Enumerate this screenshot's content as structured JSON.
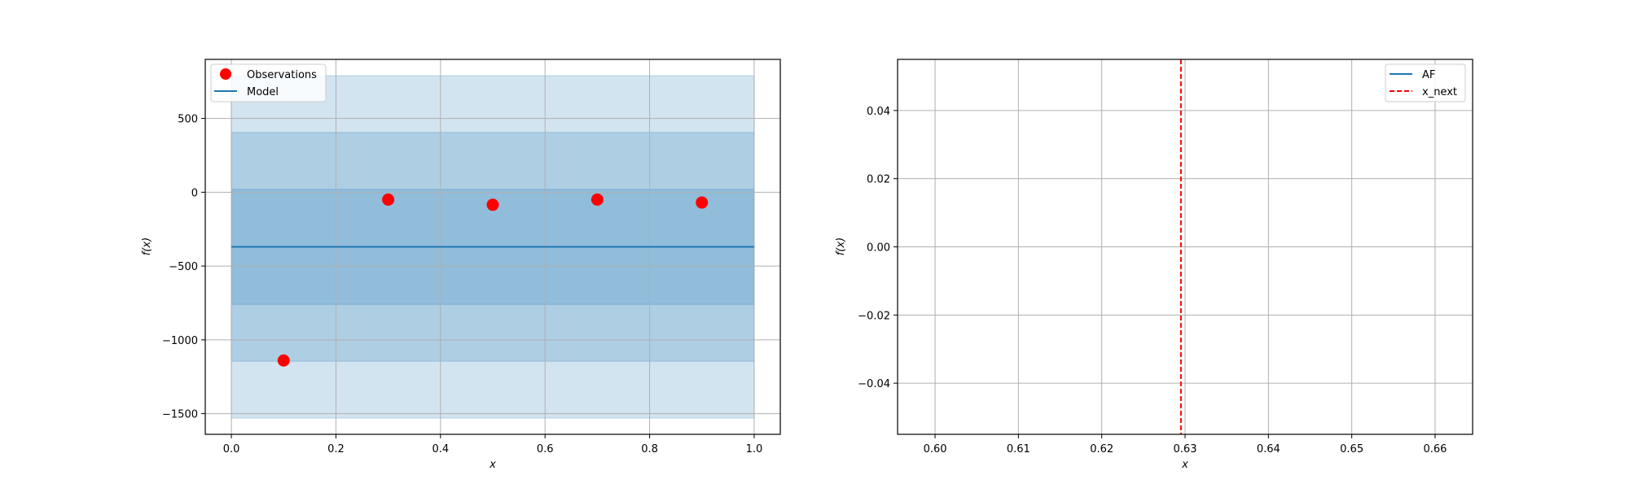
{
  "chart_data": [
    {
      "type": "line",
      "xlabel": "x",
      "ylabel": "f(x)",
      "xlim": [
        -0.05,
        1.05
      ],
      "ylim": [
        -1640,
        900
      ],
      "grid": true,
      "legend_position": "top-left",
      "xticks": [
        0.0,
        0.2,
        0.4,
        0.6,
        0.8,
        1.0
      ],
      "xtick_labels": [
        "0.0",
        "0.2",
        "0.4",
        "0.6",
        "0.8",
        "1.0"
      ],
      "yticks": [
        500,
        0,
        -500,
        -1000,
        -1500
      ],
      "ytick_labels": [
        "500",
        "0",
        "−500",
        "−1000",
        "−1500"
      ],
      "legend": [
        "Observations",
        "Model"
      ],
      "colors": {
        "observations": "#ff0000",
        "model": "#1f77b4"
      },
      "observations": {
        "name": "Observations",
        "x": [
          0.1,
          0.3,
          0.5,
          0.7,
          0.9
        ],
        "y": [
          -1140,
          -50,
          -85,
          -50,
          -70
        ]
      },
      "model": {
        "name": "Model",
        "x": [
          0.0,
          1.0
        ],
        "y": [
          -370,
          -370
        ]
      },
      "confidence_bands": [
        {
          "lower": -1530,
          "upper": 790
        },
        {
          "lower": -1145,
          "upper": 405
        },
        {
          "lower": -760,
          "upper": 20
        }
      ]
    },
    {
      "type": "line",
      "xlabel": "x",
      "ylabel": "f(x)",
      "xlim": [
        0.5955,
        0.6645
      ],
      "ylim": [
        -0.055,
        0.055
      ],
      "grid": true,
      "legend_position": "top-right",
      "xticks": [
        0.6,
        0.61,
        0.62,
        0.63,
        0.64,
        0.65,
        0.66
      ],
      "xtick_labels": [
        "0.60",
        "0.61",
        "0.62",
        "0.63",
        "0.64",
        "0.65",
        "0.66"
      ],
      "yticks": [
        0.04,
        0.02,
        0.0,
        -0.02,
        -0.04
      ],
      "ytick_labels": [
        "0.04",
        "0.02",
        "0.00",
        "−0.02",
        "−0.04"
      ],
      "legend": [
        "AF",
        "x_next"
      ],
      "colors": {
        "af": "#1f77b4",
        "x_next": "#ff0000"
      },
      "af": {
        "name": "AF",
        "x": [],
        "y": []
      },
      "x_next": {
        "name": "x_next",
        "x": 0.6295
      }
    }
  ]
}
